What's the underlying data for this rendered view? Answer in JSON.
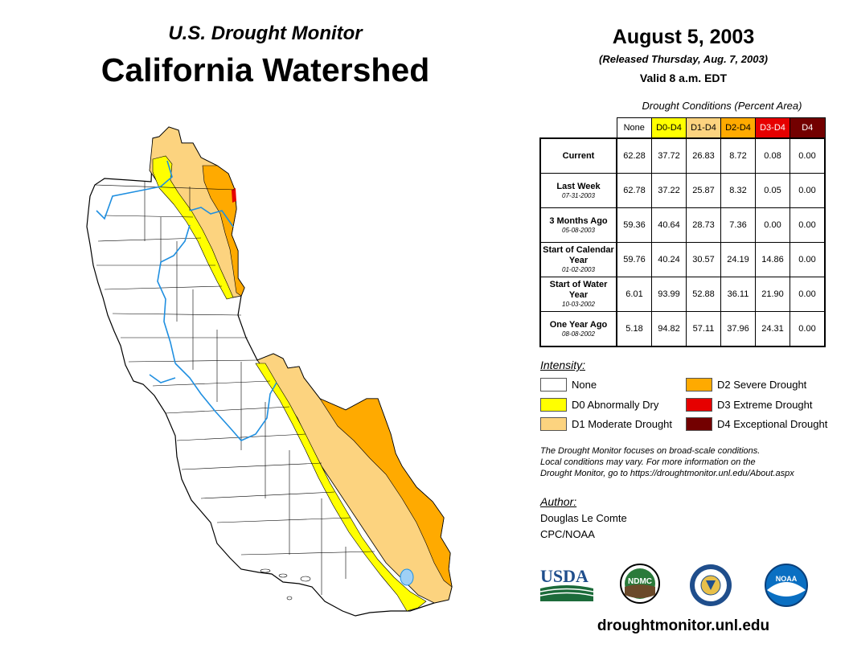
{
  "header": {
    "subtitle": "U.S. Drought Monitor",
    "title": "California Watershed"
  },
  "info": {
    "date": "August 5, 2003",
    "released": "(Released Thursday, Aug. 7, 2003)",
    "valid": "Valid 8 a.m. EDT"
  },
  "table": {
    "caption": "Drought Conditions (Percent Area)",
    "columns": [
      "None",
      "D0-D4",
      "D1-D4",
      "D2-D4",
      "D3-D4",
      "D4"
    ],
    "column_colors": [
      "#ffffff",
      "#ffff00",
      "#fcd37f",
      "#ffaa00",
      "#e60000",
      "#730000"
    ],
    "column_text_colors": [
      "#000000",
      "#000000",
      "#000000",
      "#000000",
      "#ffffff",
      "#ffffff"
    ],
    "rows": [
      {
        "label": "Current",
        "date": "",
        "values": [
          "62.28",
          "37.72",
          "26.83",
          "8.72",
          "0.08",
          "0.00"
        ]
      },
      {
        "label": "Last Week",
        "date": "07-31-2003",
        "values": [
          "62.78",
          "37.22",
          "25.87",
          "8.32",
          "0.05",
          "0.00"
        ]
      },
      {
        "label": "3 Months Ago",
        "date": "05-08-2003",
        "values": [
          "59.36",
          "40.64",
          "28.73",
          "7.36",
          "0.00",
          "0.00"
        ]
      },
      {
        "label": "Start of Calendar Year",
        "date": "01-02-2003",
        "values": [
          "59.76",
          "40.24",
          "30.57",
          "24.19",
          "14.86",
          "0.00"
        ]
      },
      {
        "label": "Start of Water Year",
        "date": "10-03-2002",
        "values": [
          "6.01",
          "93.99",
          "52.88",
          "36.11",
          "21.90",
          "0.00"
        ]
      },
      {
        "label": "One Year Ago",
        "date": "08-08-2002",
        "values": [
          "5.18",
          "94.82",
          "57.11",
          "37.96",
          "24.31",
          "0.00"
        ]
      }
    ]
  },
  "legend": {
    "title": "Intensity:",
    "items": [
      {
        "label": "None",
        "color": "#ffffff"
      },
      {
        "label": "D0 Abnormally Dry",
        "color": "#ffff00"
      },
      {
        "label": "D1 Moderate Drought",
        "color": "#fcd37f"
      },
      {
        "label": "D2 Severe Drought",
        "color": "#ffaa00"
      },
      {
        "label": "D3 Extreme Drought",
        "color": "#e60000"
      },
      {
        "label": "D4 Exceptional Drought",
        "color": "#730000"
      }
    ]
  },
  "note": {
    "line1": "The Drought Monitor focuses on broad-scale conditions.",
    "line2": "Local conditions may vary. For more information on the",
    "line3": "Drought Monitor, go to https://droughtmonitor.unl.edu/About.aspx"
  },
  "author": {
    "title": "Author:",
    "name": "Douglas Le Comte",
    "org": "CPC/NOAA"
  },
  "logos": {
    "usda": "USDA",
    "ndmc": "NDMC",
    "noaa": "NOAA"
  },
  "footer": {
    "url": "droughtmonitor.unl.edu"
  }
}
